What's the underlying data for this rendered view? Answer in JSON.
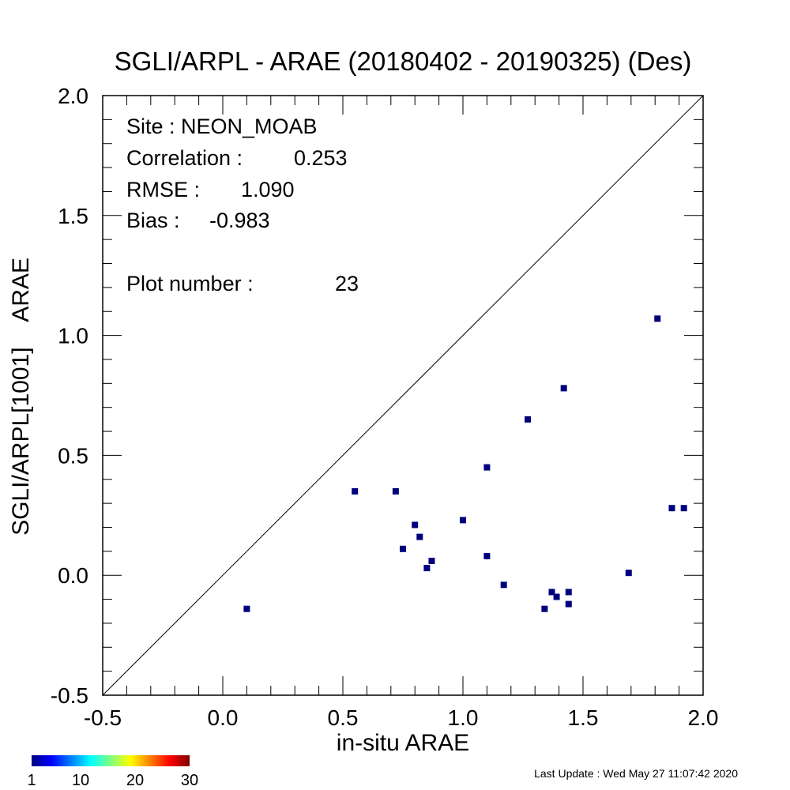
{
  "chart_data": {
    "type": "scatter",
    "title": "SGLI/ARPL - ARAE (20180402 - 20190325) (Des)",
    "xlabel": "in-situ ARAE",
    "ylabel": "SGLI/ARPL[1001]    ARAE",
    "xlim": [
      -0.5,
      2.0
    ],
    "ylim": [
      -0.5,
      2.0
    ],
    "x_ticks": [
      "-0.5",
      "0.0",
      "0.5",
      "1.0",
      "1.5",
      "2.0"
    ],
    "y_ticks": [
      "-0.5",
      "0.0",
      "0.5",
      "1.0",
      "1.5",
      "2.0"
    ],
    "grid": false,
    "reference_line": "1:1",
    "marker_color": "#00007f",
    "points": [
      {
        "x": 0.1,
        "y": -0.14
      },
      {
        "x": 0.55,
        "y": 0.35
      },
      {
        "x": 0.72,
        "y": 0.35
      },
      {
        "x": 0.75,
        "y": 0.11
      },
      {
        "x": 0.8,
        "y": 0.21
      },
      {
        "x": 0.82,
        "y": 0.16
      },
      {
        "x": 0.85,
        "y": 0.03
      },
      {
        "x": 0.87,
        "y": 0.06
      },
      {
        "x": 1.0,
        "y": 0.23
      },
      {
        "x": 1.1,
        "y": 0.45
      },
      {
        "x": 1.1,
        "y": 0.08
      },
      {
        "x": 1.17,
        "y": -0.04
      },
      {
        "x": 1.27,
        "y": 0.65
      },
      {
        "x": 1.34,
        "y": -0.14
      },
      {
        "x": 1.37,
        "y": -0.07
      },
      {
        "x": 1.39,
        "y": -0.09
      },
      {
        "x": 1.42,
        "y": 0.78
      },
      {
        "x": 1.44,
        "y": -0.07
      },
      {
        "x": 1.44,
        "y": -0.12
      },
      {
        "x": 1.69,
        "y": 0.01
      },
      {
        "x": 1.81,
        "y": 1.07
      },
      {
        "x": 1.87,
        "y": 0.28
      },
      {
        "x": 1.92,
        "y": 0.28
      }
    ],
    "annotations": {
      "site": "Site : NEON_MOAB",
      "correlation_label": "Correlation :",
      "correlation_value": "0.253",
      "rmse_label": "RMSE :",
      "rmse_value": "1.090",
      "bias_label": "Bias :",
      "bias_value": "-0.983",
      "plot_number_label": "Plot number :",
      "plot_number_value": "23"
    },
    "colorbar": {
      "ticks": [
        "1",
        "10",
        "20",
        "30"
      ],
      "colors": [
        "#00007f",
        "#0000ff",
        "#007fff",
        "#00ffff",
        "#7fff7f",
        "#ffff00",
        "#ff7f00",
        "#ff0000",
        "#7f0000"
      ]
    }
  },
  "footer": {
    "last_update": "Last Update : Wed May 27 11:07:42 2020"
  }
}
